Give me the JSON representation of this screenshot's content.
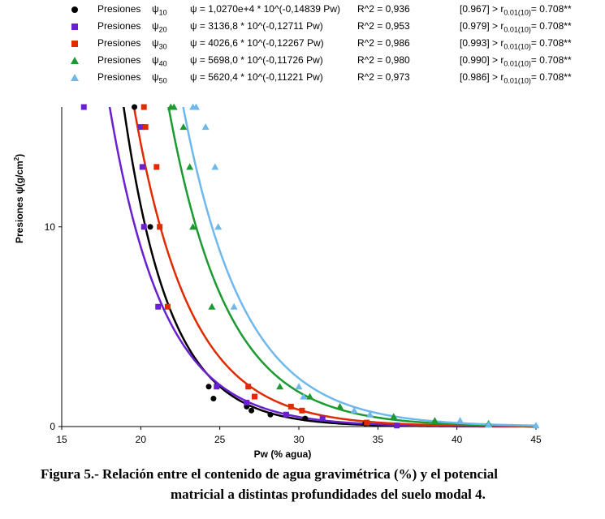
{
  "chart_data": {
    "type": "scatter",
    "xlabel": "Pw (% agua)",
    "ylabel": "Presiones ψ(g/cm",
    "ylabel_sup": "2",
    "ylabel_end": ")",
    "xlim": [
      15,
      45
    ],
    "ylim": [
      0,
      16
    ],
    "xticks": [
      "15",
      "20",
      "25",
      "30",
      "35",
      "40",
      "45"
    ],
    "xtick_values": [
      15,
      20,
      25,
      30,
      35,
      40,
      45
    ],
    "yticks": [
      "0",
      "10"
    ],
    "ytick_values": [
      0,
      10
    ],
    "grid": false,
    "series": [
      {
        "name": "Presiones",
        "psi": "ψ",
        "psi_sub": "10",
        "color": "#000000",
        "marker": "circle",
        "equation": "ψ = 1,0270e+4 * 10^(-0,14839 Pw)",
        "r2": "R^2 = 0,936",
        "corr_pre": "[0.967] > r",
        "corr_sub": "0.01(10)",
        "corr_post": "= 0.708**",
        "fit_a": 10270,
        "fit_b": 0.14839,
        "points": [
          [
            19.6,
            16
          ],
          [
            20.2,
            15
          ],
          [
            20.6,
            10
          ],
          [
            24.3,
            2
          ],
          [
            24.6,
            1.4
          ],
          [
            26.7,
            1
          ],
          [
            27,
            0.8
          ],
          [
            28.2,
            0.6
          ],
          [
            30.4,
            0.4
          ],
          [
            34.2,
            0.15
          ]
        ]
      },
      {
        "name": "Presiones",
        "psi": "ψ",
        "psi_sub": "20",
        "color": "#6a1fd0",
        "marker": "square",
        "equation": "ψ = 3136,8 * 10^(-0,12711 Pw)",
        "r2": "R^2 = 0,953",
        "corr_pre": "[0.979] > r",
        "corr_sub": "0.01(10)",
        "corr_post": "= 0.708**",
        "fit_a": 3136.8,
        "fit_b": 0.12711,
        "points": [
          [
            16.4,
            16
          ],
          [
            20,
            15
          ],
          [
            20.1,
            13
          ],
          [
            20.2,
            10
          ],
          [
            21.1,
            6
          ],
          [
            24.8,
            2
          ],
          [
            26.7,
            1.2
          ],
          [
            29.2,
            0.6
          ],
          [
            31.5,
            0.4
          ],
          [
            36.2,
            0.05
          ]
        ]
      },
      {
        "name": "Presiones",
        "psi": "ψ",
        "psi_sub": "30",
        "color": "#e02a00",
        "marker": "square",
        "equation": "ψ = 4026,6 * 10^(-0,12267 Pw)",
        "r2": "R^2 = 0,986",
        "corr_pre": "[0.993] > r",
        "corr_sub": "0.01(10)",
        "corr_post": "= 0.708**",
        "fit_a": 4026.6,
        "fit_b": 0.12267,
        "points": [
          [
            20.2,
            16
          ],
          [
            20.3,
            15
          ],
          [
            21,
            13
          ],
          [
            21.2,
            10
          ],
          [
            21.7,
            6
          ],
          [
            26.8,
            2
          ],
          [
            27.2,
            1.5
          ],
          [
            29.5,
            1
          ],
          [
            30.2,
            0.8
          ],
          [
            34.3,
            0.2
          ]
        ]
      },
      {
        "name": "Presiones",
        "psi": "ψ",
        "psi_sub": "40",
        "color": "#1a9a30",
        "marker": "triangle",
        "equation": "ψ = 5698,0 * 10^(-0,11726 Pw)",
        "r2": "R^2 = 0,980",
        "corr_pre": "[0.990] > r",
        "corr_sub": "0.01(10)",
        "corr_post": "= 0.708**",
        "fit_a": 5698.0,
        "fit_b": 0.11726,
        "points": [
          [
            21.9,
            16
          ],
          [
            22.1,
            16
          ],
          [
            22.7,
            15
          ],
          [
            23.1,
            13
          ],
          [
            23.3,
            10
          ],
          [
            24.5,
            6
          ],
          [
            28.8,
            2
          ],
          [
            30.7,
            1.5
          ],
          [
            32.6,
            1
          ],
          [
            36,
            0.5
          ],
          [
            38.6,
            0.3
          ],
          [
            42,
            0.15
          ]
        ]
      },
      {
        "name": "Presiones",
        "psi": "ψ",
        "psi_sub": "50",
        "color": "#6fb8ec",
        "marker": "triangle",
        "equation": "ψ = 5620,4 * 10^(-0,11221 Pw)",
        "r2": "R^2 = 0,973",
        "corr_pre": "[0.986] > r",
        "corr_sub": "0.01(10)",
        "corr_post": "= 0.708**",
        "fit_a": 5620.4,
        "fit_b": 0.11221,
        "points": [
          [
            23.3,
            16
          ],
          [
            23.5,
            16
          ],
          [
            24.1,
            15
          ],
          [
            24.7,
            13
          ],
          [
            24.9,
            10
          ],
          [
            25.9,
            6
          ],
          [
            30,
            2
          ],
          [
            30.3,
            1.5
          ],
          [
            33.5,
            0.8
          ],
          [
            34.5,
            0.6
          ],
          [
            40.2,
            0.3
          ],
          [
            42,
            0.1
          ],
          [
            45,
            0.05
          ]
        ]
      }
    ]
  },
  "caption": {
    "line1": "Figura  5.- Relación entre el contenido de agua gravimétrica (%) y el potencial",
    "line2": "matricial  a distintas profundidades del suelo modal 4."
  }
}
